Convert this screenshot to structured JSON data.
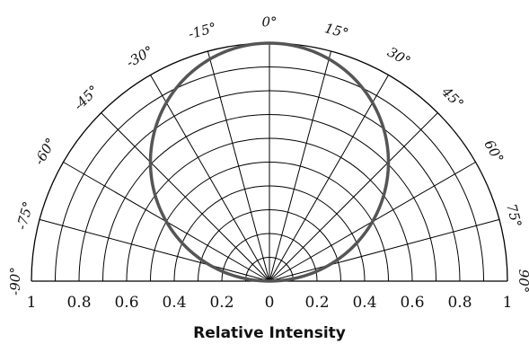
{
  "chart_data": {
    "type": "polar-half",
    "angle_labels": [
      "-90°",
      "-75°",
      "-60°",
      "-45°",
      "-30°",
      "-15°",
      "0°",
      "15°",
      "30°",
      "45°",
      "60°",
      "75°",
      "90°"
    ],
    "angles_deg": [
      -90,
      -75,
      -60,
      -45,
      -30,
      -15,
      0,
      15,
      30,
      45,
      60,
      75,
      90
    ],
    "radial_ticks": [
      1,
      0.8,
      0.6,
      0.4,
      0.2,
      0,
      0.2,
      0.4,
      0.6,
      0.8,
      1
    ],
    "xlabel": "Relative Intensity",
    "radial_range": [
      0,
      1
    ],
    "radial_grid_step": 0.1,
    "angle_grid_step_deg": 15,
    "series": [
      {
        "angles_deg": [
          -90,
          -75,
          -60,
          -45,
          -30,
          -15,
          0,
          15,
          30,
          45,
          60,
          75,
          90
        ],
        "values": [
          0.0,
          0.259,
          0.5,
          0.707,
          0.866,
          0.966,
          1.0,
          0.966,
          0.866,
          0.707,
          0.5,
          0.259,
          0.0
        ],
        "color": "#555555"
      }
    ],
    "grid_color": "#000000"
  }
}
